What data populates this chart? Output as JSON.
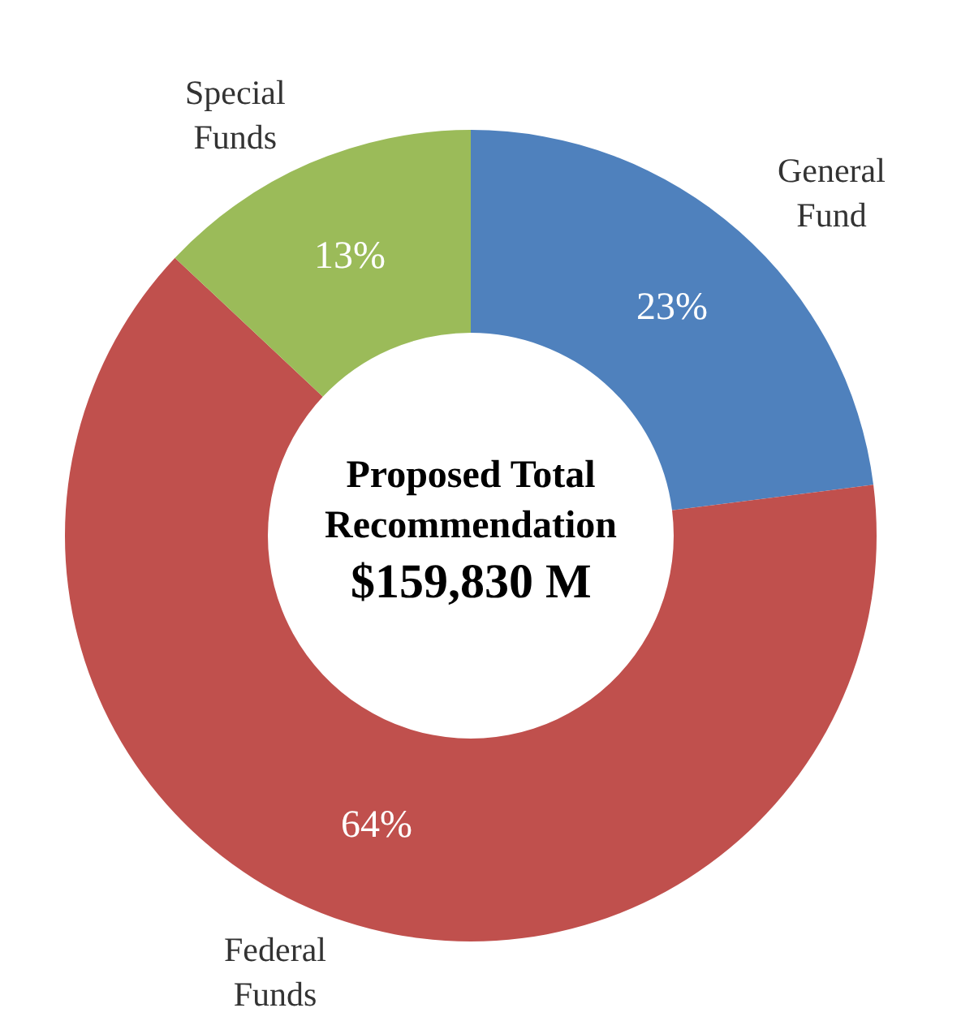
{
  "chart_data": {
    "type": "donut",
    "categories": [
      "General Fund",
      "Federal Funds",
      "Special Funds"
    ],
    "values": [
      23,
      64,
      13
    ],
    "colors": [
      "#4f81bd",
      "#c0504d",
      "#9bbb59"
    ],
    "value_labels": [
      "23%",
      "64%",
      "13%"
    ],
    "annotations": [
      "Proposed Total Recommendation",
      "$159,830 M"
    ],
    "legend": false
  }
}
